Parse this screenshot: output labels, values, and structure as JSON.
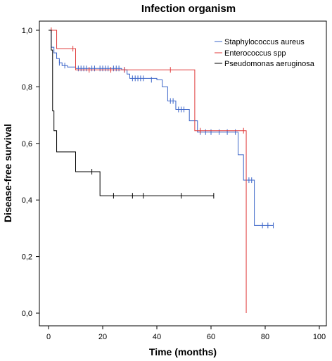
{
  "chart_data": {
    "type": "line",
    "subtype": "kaplan-meier-step",
    "title": "Infection organism",
    "xlabel": "Time (months)",
    "ylabel": "Disease-free survival",
    "xlim": [
      0,
      100
    ],
    "ylim": [
      0,
      1
    ],
    "xticks": [
      0,
      20,
      40,
      60,
      80,
      100
    ],
    "yticks": [
      0,
      0.2,
      0.4,
      0.6,
      0.8,
      1.0
    ],
    "xtick_labels": [
      "0",
      "20",
      "40",
      "60",
      "80",
      "100"
    ],
    "ytick_labels": [
      "0,0",
      "0,2",
      "0,4",
      "0,6",
      "0,8",
      "1,0"
    ],
    "grid": false,
    "legend_position": "top-right",
    "series": [
      {
        "name": "Staphylococcus aureus",
        "color": "#3a64c8",
        "steps": [
          [
            0,
            1.0
          ],
          [
            1,
            0.94
          ],
          [
            2,
            0.92
          ],
          [
            3,
            0.9
          ],
          [
            4,
            0.885
          ],
          [
            5,
            0.875
          ],
          [
            7,
            0.87
          ],
          [
            10,
            0.865
          ],
          [
            27,
            0.86
          ],
          [
            29,
            0.845
          ],
          [
            30,
            0.83
          ],
          [
            40,
            0.825
          ],
          [
            42,
            0.8
          ],
          [
            44,
            0.75
          ],
          [
            47,
            0.72
          ],
          [
            52,
            0.68
          ],
          [
            55,
            0.64
          ],
          [
            70,
            0.56
          ],
          [
            72,
            0.47
          ],
          [
            76,
            0.31
          ],
          [
            83,
            0.31
          ]
        ],
        "censored": [
          [
            4,
            0.885
          ],
          [
            6,
            0.875
          ],
          [
            11,
            0.865
          ],
          [
            12,
            0.865
          ],
          [
            13,
            0.865
          ],
          [
            14,
            0.865
          ],
          [
            16,
            0.865
          ],
          [
            17,
            0.865
          ],
          [
            19,
            0.865
          ],
          [
            20,
            0.865
          ],
          [
            21,
            0.865
          ],
          [
            22,
            0.865
          ],
          [
            24,
            0.865
          ],
          [
            25,
            0.865
          ],
          [
            26,
            0.865
          ],
          [
            28,
            0.86
          ],
          [
            31,
            0.83
          ],
          [
            32,
            0.83
          ],
          [
            33,
            0.83
          ],
          [
            34,
            0.83
          ],
          [
            35,
            0.83
          ],
          [
            38,
            0.825
          ],
          [
            45,
            0.75
          ],
          [
            46,
            0.75
          ],
          [
            48,
            0.72
          ],
          [
            49,
            0.72
          ],
          [
            50,
            0.72
          ],
          [
            56,
            0.64
          ],
          [
            58,
            0.64
          ],
          [
            60,
            0.64
          ],
          [
            63,
            0.64
          ],
          [
            66,
            0.64
          ],
          [
            69,
            0.64
          ],
          [
            74,
            0.47
          ],
          [
            75,
            0.47
          ],
          [
            79,
            0.31
          ],
          [
            81,
            0.31
          ],
          [
            83,
            0.31
          ]
        ]
      },
      {
        "name": "Enterococcus spp",
        "color": "#e03a3a",
        "steps": [
          [
            0,
            1.0
          ],
          [
            3,
            0.935
          ],
          [
            10,
            0.86
          ],
          [
            54,
            0.645
          ],
          [
            73,
            0.0
          ]
        ],
        "censored": [
          [
            1,
            1.0
          ],
          [
            9,
            0.935
          ],
          [
            15,
            0.86
          ],
          [
            23,
            0.86
          ],
          [
            28,
            0.86
          ],
          [
            45,
            0.86
          ],
          [
            56,
            0.645
          ],
          [
            72,
            0.645
          ]
        ]
      },
      {
        "name": "Pseudomonas aeruginosa",
        "color": "#000000",
        "steps": [
          [
            0,
            1.0
          ],
          [
            1,
            0.93
          ],
          [
            1.5,
            0.715
          ],
          [
            2,
            0.645
          ],
          [
            3,
            0.57
          ],
          [
            10,
            0.5
          ],
          [
            19,
            0.415
          ],
          [
            61,
            0.415
          ]
        ],
        "censored": [
          [
            16,
            0.5
          ],
          [
            24,
            0.415
          ],
          [
            31,
            0.415
          ],
          [
            35,
            0.415
          ],
          [
            49,
            0.415
          ],
          [
            61,
            0.415
          ]
        ]
      }
    ]
  }
}
